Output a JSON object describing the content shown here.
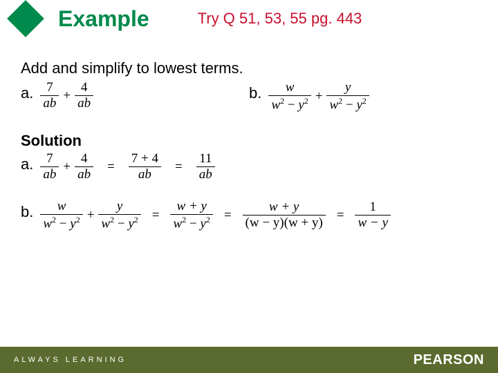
{
  "colors": {
    "accent": "#008a4b",
    "title": "#008a4b",
    "tryq": "#c8102e",
    "footer_bg": "#5b6b2f",
    "text": "#000000"
  },
  "header": {
    "title": "Example",
    "tryq": "Try Q 51, 53, 55  pg. 443"
  },
  "prompt": "Add and simplify to lowest terms.",
  "labels": {
    "a": "a.",
    "b": "b.",
    "solution": "Solution"
  },
  "problem_a": {
    "t1n": "7",
    "t1d": "ab",
    "plus": "+",
    "t2n": "4",
    "t2d": "ab"
  },
  "problem_b": {
    "t1n": "w",
    "t1d_l": "w",
    "t1d_r": "y",
    "minus": "−",
    "plus": "+",
    "t2n": "y"
  },
  "solution_a": {
    "eq": "=",
    "s2n": "7 + 4",
    "s2d": "ab",
    "s3n": "11",
    "s3d": "ab"
  },
  "solution_b": {
    "eq": "=",
    "s2n": "w + y",
    "d_l": "w",
    "d_m": "−",
    "d_r": "y",
    "s3d_l": "(w − y)(w + y)",
    "s4n": "1",
    "s4d": "w − y"
  },
  "footer": {
    "left": "ALWAYS LEARNING",
    "right": "PEARSON"
  }
}
